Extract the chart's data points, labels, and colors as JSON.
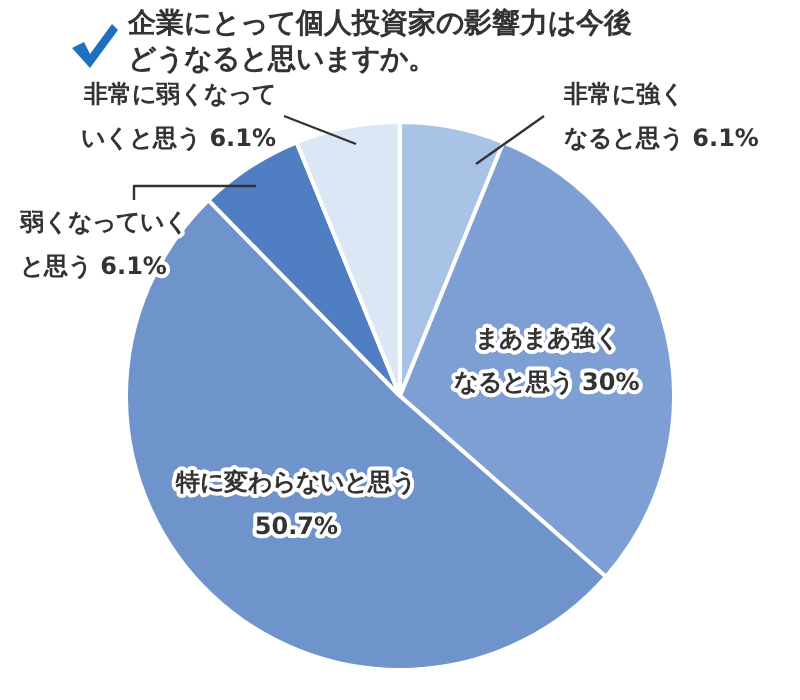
{
  "chart_data": {
    "type": "pie",
    "title": "企業にとって個人投資家の影響力は今後どうなると思いますか。",
    "categories": [
      "非常に強くなると思う",
      "まあまあ強くなると思う",
      "特に変わらないと思う",
      "弱くなっていくと思う",
      "非常に弱くなっていくと思う"
    ],
    "values": [
      6.1,
      30,
      50.7,
      6.1,
      6.1
    ],
    "value_labels": [
      "6.1%",
      "30%",
      "50.7%",
      "6.1%",
      "6.1%"
    ],
    "colors": [
      "#a9c3e6",
      "#7d9fd4",
      "#6f94cc",
      "#4f7fc2",
      "#dce7f6"
    ],
    "legend": false
  }
}
